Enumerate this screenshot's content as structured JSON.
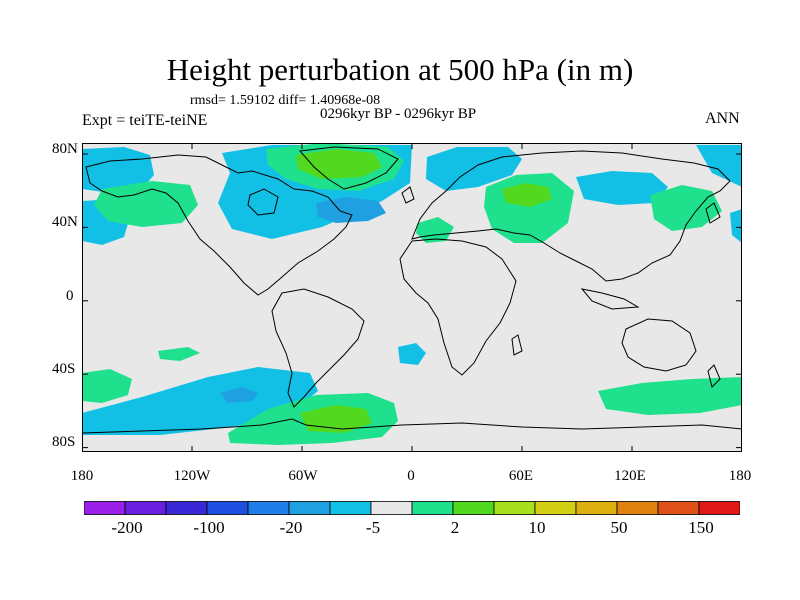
{
  "title": "Height perturbation at 500 hPa (in m)",
  "stats": "rmsd= 1.59102 diff= 1.40968e-08",
  "period": "0296kyr BP - 0296kyr BP",
  "experiment": "Expt = teiTE-teiNE",
  "season": "ANN",
  "map": {
    "background_color": "#e8e8e8",
    "coastline_color": "#000000",
    "lat_labels": [
      "80N",
      "40N",
      "0",
      "40S",
      "80S"
    ],
    "lon_labels": [
      "180",
      "120W",
      "60W",
      "0",
      "60E",
      "120E",
      "180"
    ]
  },
  "colorbar": {
    "colors": [
      "#9a1fe8",
      "#6a1fe0",
      "#3a28d8",
      "#1f4fe0",
      "#1f7ee8",
      "#1fa0e0",
      "#12c0e6",
      "#e8e8e8",
      "#1fe08c",
      "#52d81e",
      "#a8e01e",
      "#d2cf14",
      "#dcb00e",
      "#e08210",
      "#e0501a",
      "#e01818"
    ],
    "labels": [
      "-200",
      "-100",
      "-20",
      "-5",
      "2",
      "10",
      "50",
      "150"
    ]
  },
  "field_colors": {
    "blue": "#12c0e6",
    "blue_dark": "#1fa0e0",
    "green": "#1fe08c",
    "green_dark": "#52d81e"
  }
}
